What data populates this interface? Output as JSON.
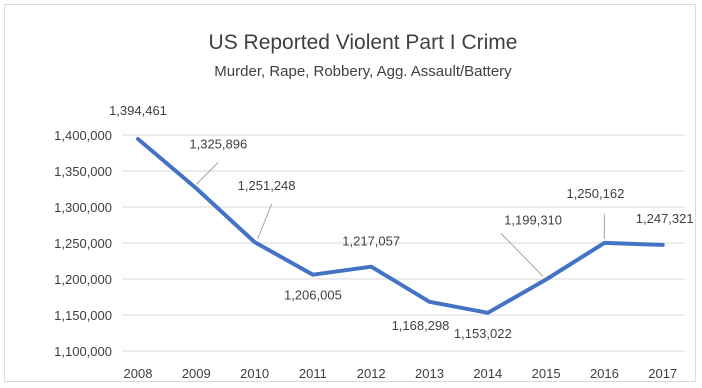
{
  "chart_data": {
    "type": "line",
    "title": "US Reported Violent Part I Crime",
    "subtitle": "Murder, Rape, Robbery, Agg. Assault/Battery",
    "x": [
      "2008",
      "2009",
      "2010",
      "2011",
      "2012",
      "2013",
      "2014",
      "2015",
      "2016",
      "2017"
    ],
    "series": [
      {
        "values": [
          1394461,
          1325896,
          1251248,
          1206005,
          1217057,
          1168298,
          1153022,
          1199310,
          1250162,
          1247321
        ],
        "color": "#4472c4"
      }
    ],
    "value_labels": [
      "1,394,461",
      "1,325,896",
      "1,251,248",
      "1,206,005",
      "1,217,057",
      "1,168,298",
      "1,153,022",
      "1,199,310",
      "1,250,162",
      "1,247,321"
    ],
    "ylim": [
      1100000,
      1400000
    ],
    "y_ticks": [
      1100000,
      1150000,
      1200000,
      1250000,
      1300000,
      1350000,
      1400000
    ],
    "y_tick_labels": [
      "1,100,000",
      "1,150,000",
      "1,200,000",
      "1,250,000",
      "1,300,000",
      "1,350,000",
      "1,400,000"
    ],
    "grid": true,
    "legend": "none",
    "gridline_color": "#d9d9d9"
  }
}
